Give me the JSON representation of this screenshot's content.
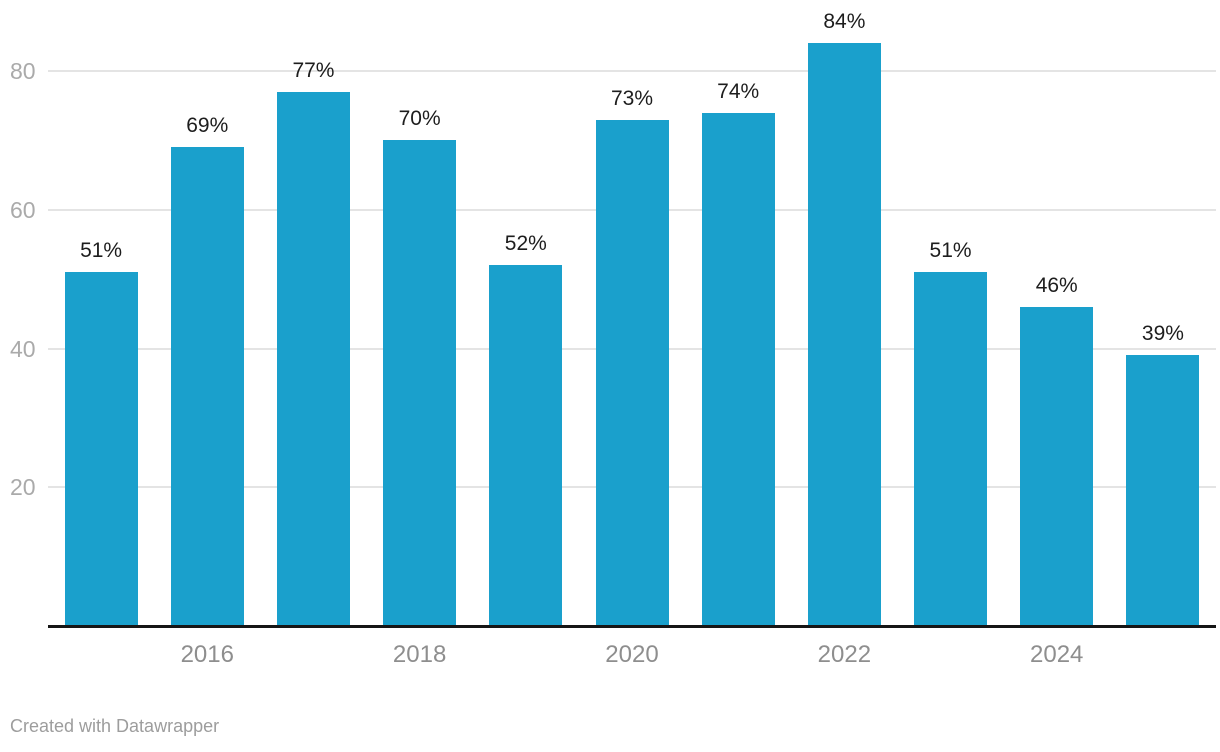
{
  "chart_data": {
    "type": "bar",
    "categories": [
      "2015",
      "2016",
      "2017",
      "2018",
      "2019",
      "2020",
      "2021",
      "2022",
      "2023",
      "2024",
      "2025"
    ],
    "values": [
      51,
      69,
      77,
      70,
      52,
      73,
      74,
      84,
      51,
      46,
      39
    ],
    "value_labels": [
      "51%",
      "69%",
      "77%",
      "70%",
      "52%",
      "73%",
      "74%",
      "84%",
      "51%",
      "46%",
      "39%"
    ],
    "x_ticks": [
      {
        "index": 1,
        "label": "2016"
      },
      {
        "index": 3,
        "label": "2018"
      },
      {
        "index": 5,
        "label": "2020"
      },
      {
        "index": 7,
        "label": "2022"
      },
      {
        "index": 9,
        "label": "2024"
      }
    ],
    "y_ticks": [
      20,
      40,
      60,
      80
    ],
    "ylim": [
      0,
      90
    ],
    "title": "",
    "xlabel": "",
    "ylabel": "",
    "grid": true,
    "legend": "none",
    "bar_color": "#1aa0cc",
    "gridline_color": "#e4e4e4",
    "baseline_color": "#161616",
    "y_tick_color": "#aaaaaa",
    "x_tick_color": "#8e8e8e",
    "value_label_color": "#1d1d1d"
  },
  "footer": {
    "credit": "Created with Datawrapper"
  }
}
